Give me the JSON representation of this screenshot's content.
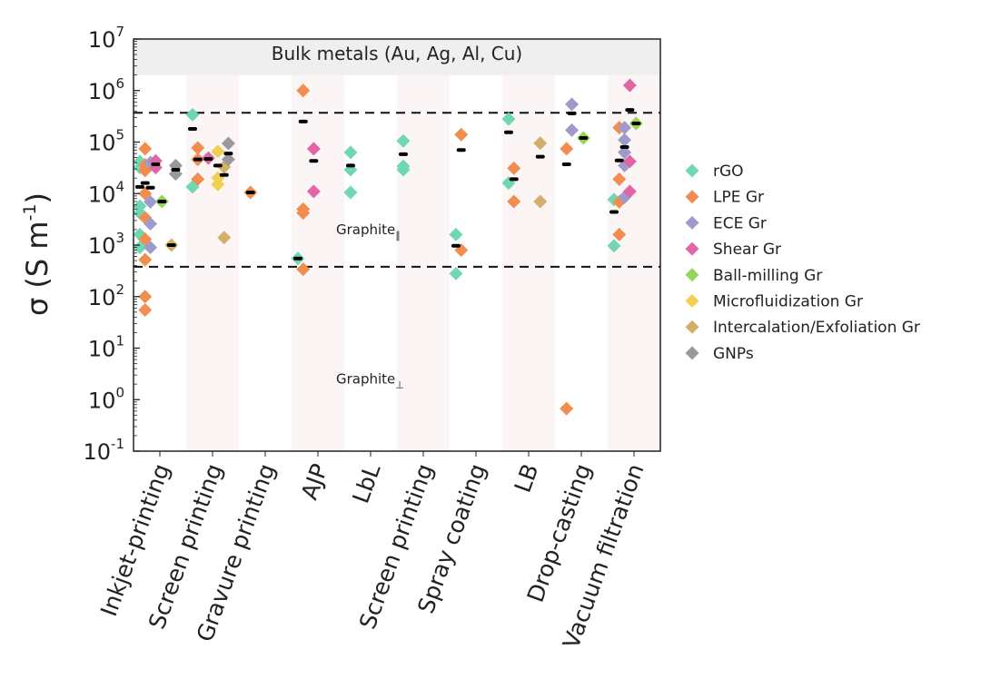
{
  "chart_data": {
    "type": "scatter",
    "title": "",
    "ylabel": "σ (S m",
    "ylabel_sup": "-1",
    "ylabel_close": ")",
    "yscale": "log",
    "ylim": [
      0.1,
      10000000
    ],
    "ytick_labels": [
      {
        "base": "10",
        "exp": "-1"
      },
      {
        "base": "10",
        "exp": "0"
      },
      {
        "base": "10",
        "exp": "1"
      },
      {
        "base": "10",
        "exp": "2"
      },
      {
        "base": "10",
        "exp": "3"
      },
      {
        "base": "10",
        "exp": "4"
      },
      {
        "base": "10",
        "exp": "5"
      },
      {
        "base": "10",
        "exp": "6"
      },
      {
        "base": "10",
        "exp": "7"
      }
    ],
    "categories": [
      "Inkjet-printing",
      "Screen printing",
      "Gravure printing",
      "AJP",
      "LbL",
      "Screen printing",
      "Spray coating",
      "LB",
      "Drop-casting",
      "Vacuum filtration"
    ],
    "band": {
      "label": "Bulk metals (Au, Ag, Al, Cu)",
      "range": [
        2000000,
        10000000
      ],
      "color": "#efefef"
    },
    "reference_lines": [
      {
        "value": 370000,
        "style": "dashed"
      },
      {
        "value": 380,
        "style": "dashed"
      }
    ],
    "annotations": [
      {
        "text": "Graphite",
        "sub": "∥",
        "value": 2000
      },
      {
        "text": "Graphite",
        "sub": "⊥",
        "value": 2.5
      }
    ],
    "legend_position": "right",
    "series": [
      {
        "name": "rGO",
        "color": "#6fd8b2",
        "points": [
          [
            0,
            42000
          ],
          [
            0,
            32000
          ],
          [
            0,
            5700
          ],
          [
            0,
            4200
          ],
          [
            0,
            1600
          ],
          [
            0,
            900
          ],
          [
            1,
            340000
          ],
          [
            1,
            13500
          ],
          [
            3,
            550
          ],
          [
            4,
            63000
          ],
          [
            4,
            29000
          ],
          [
            4,
            10500
          ],
          [
            5,
            105000
          ],
          [
            5,
            34000
          ],
          [
            5,
            29000
          ],
          [
            6,
            1600
          ],
          [
            6,
            280
          ],
          [
            7,
            280000
          ],
          [
            7,
            16000
          ],
          [
            9,
            7700
          ],
          [
            9,
            970
          ]
        ]
      },
      {
        "name": "LPE Gr",
        "color": "#f08d4f",
        "points": [
          [
            0,
            74000
          ],
          [
            0,
            36000
          ],
          [
            0,
            28000
          ],
          [
            0,
            10000
          ],
          [
            0,
            3400
          ],
          [
            0,
            1300
          ],
          [
            0,
            520
          ],
          [
            0,
            100
          ],
          [
            0,
            55
          ],
          [
            1,
            77000
          ],
          [
            1,
            46000
          ],
          [
            1,
            19000
          ],
          [
            2,
            10500
          ],
          [
            3,
            1000000
          ],
          [
            3,
            5000
          ],
          [
            3,
            4200
          ],
          [
            3,
            340
          ],
          [
            6,
            140000
          ],
          [
            6,
            800
          ],
          [
            7,
            31000
          ],
          [
            7,
            7000
          ],
          [
            8,
            74000
          ],
          [
            8,
            0.67
          ],
          [
            9,
            190000
          ],
          [
            9,
            19000
          ],
          [
            9,
            6900
          ],
          [
            9,
            1600
          ]
        ]
      },
      {
        "name": "ECE Gr",
        "color": "#9e9bcc",
        "points": [
          [
            0,
            40000
          ],
          [
            0,
            6900
          ],
          [
            0,
            2600
          ],
          [
            0,
            900
          ],
          [
            8,
            540000
          ],
          [
            8,
            170000
          ],
          [
            9,
            190000
          ],
          [
            9,
            110000
          ],
          [
            9,
            63000
          ],
          [
            9,
            35000
          ],
          [
            9,
            8500
          ]
        ]
      },
      {
        "name": "Shear Gr",
        "color": "#e066a6",
        "points": [
          [
            0,
            43000
          ],
          [
            0,
            32000
          ],
          [
            1,
            49000
          ],
          [
            3,
            74000
          ],
          [
            3,
            11000
          ],
          [
            9,
            1260000
          ],
          [
            9,
            42000
          ],
          [
            9,
            11000
          ]
        ]
      },
      {
        "name": "Ball-milling Gr",
        "color": "#93d65c",
        "points": [
          [
            0,
            7000
          ],
          [
            8,
            120000
          ],
          [
            9,
            230000
          ]
        ]
      },
      {
        "name": "Microfluidization Gr",
        "color": "#f2cf50",
        "points": [
          [
            1,
            66000
          ],
          [
            1,
            20000
          ],
          [
            1,
            15000
          ]
        ]
      },
      {
        "name": "Intercalation/Exfoliation Gr",
        "color": "#d3b06a",
        "points": [
          [
            0,
            1000
          ],
          [
            1,
            33000
          ],
          [
            1,
            1400
          ],
          [
            7,
            95000
          ],
          [
            7,
            7000
          ]
        ]
      },
      {
        "name": "GNPs",
        "color": "#999999",
        "points": [
          [
            0,
            35000
          ],
          [
            0,
            24000
          ],
          [
            1,
            94000
          ],
          [
            1,
            46000
          ]
        ]
      }
    ],
    "dash_marks": [
      [
        0,
        "Shear Gr",
        37000
      ],
      [
        0,
        "LPE Gr",
        16000
      ],
      [
        0,
        "rGO",
        13500
      ],
      [
        0,
        "ECE Gr",
        13000
      ],
      [
        0,
        "Ball-milling Gr",
        7000
      ],
      [
        0,
        "Intercalation/Exfoliation Gr",
        1000
      ],
      [
        0,
        "GNPs",
        29000
      ],
      [
        1,
        "rGO",
        180000
      ],
      [
        1,
        "LPE Gr",
        46000
      ],
      [
        1,
        "Shear Gr",
        47000
      ],
      [
        1,
        "Microfluidization Gr",
        35000
      ],
      [
        1,
        "Intercalation/Exfoliation Gr",
        23000
      ],
      [
        1,
        "GNPs",
        60000
      ],
      [
        2,
        "LPE Gr",
        10500
      ],
      [
        3,
        "LPE Gr",
        250000
      ],
      [
        3,
        "rGO",
        550
      ],
      [
        3,
        "Shear Gr",
        43000
      ],
      [
        4,
        "rGO",
        35000
      ],
      [
        5,
        "rGO",
        58000
      ],
      [
        6,
        "LPE Gr",
        70000
      ],
      [
        6,
        "rGO",
        970
      ],
      [
        7,
        "rGO",
        155000
      ],
      [
        7,
        "LPE Gr",
        19000
      ],
      [
        7,
        "Intercalation/Exfoliation Gr",
        52000
      ],
      [
        8,
        "ECE Gr",
        360000
      ],
      [
        8,
        "LPE Gr",
        37000
      ],
      [
        8,
        "Ball-milling Gr",
        120000
      ],
      [
        9,
        "Shear Gr",
        420000
      ],
      [
        9,
        "Ball-milling Gr",
        230000
      ],
      [
        9,
        "ECE Gr",
        80000
      ],
      [
        9,
        "LPE Gr",
        44000
      ],
      [
        9,
        "rGO",
        4400
      ]
    ]
  }
}
